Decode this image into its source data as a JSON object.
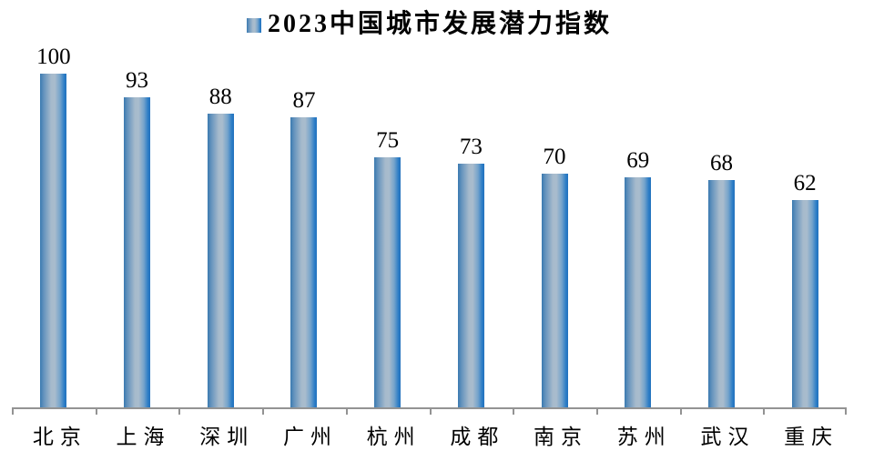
{
  "legend": {
    "title": "2023中国城市发展潜力指数",
    "position": "top-center"
  },
  "chart_data": {
    "type": "bar",
    "title": "2023中国城市发展潜力指数",
    "categories": [
      "北京",
      "上海",
      "深圳",
      "广州",
      "杭州",
      "成都",
      "南京",
      "苏州",
      "武汉",
      "重庆"
    ],
    "values": [
      100,
      93,
      88,
      87,
      75,
      73,
      70,
      69,
      68,
      62
    ],
    "xlabel": "",
    "ylabel": "",
    "ylim": [
      0,
      100
    ],
    "grid": false,
    "y_axis_visible": false,
    "value_labels_visible": true,
    "legend_position": "top",
    "colors": {
      "bar_edge": "#2272bd",
      "bar_highlight": "#a9bccd",
      "axis": "#939393",
      "text": "#000000",
      "background": "#ffffff"
    }
  }
}
